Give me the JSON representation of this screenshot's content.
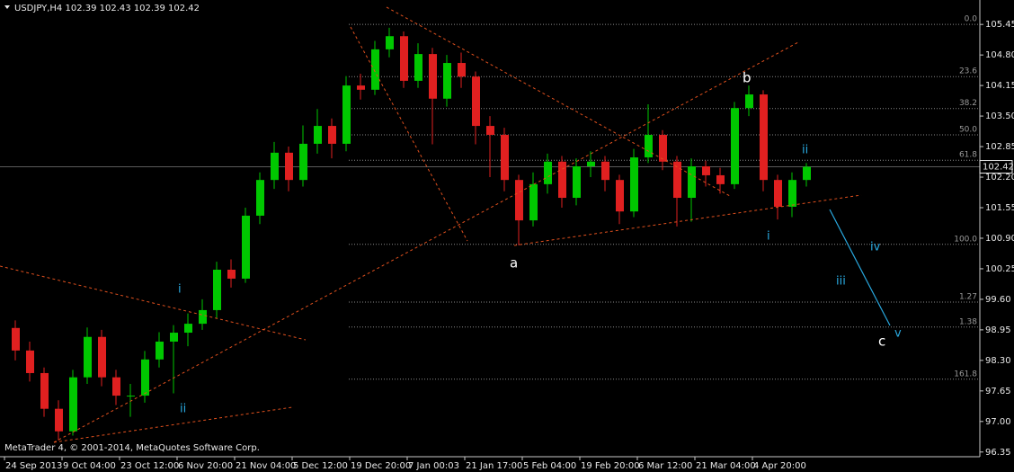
{
  "chart_data": {
    "type": "candlestick",
    "title": "USDJPY,H4  102.39 102.43 102.39 102.42",
    "footer": "MetaTrader 4, © 2001-2014, MetaQuotes Software Corp.",
    "categories": [
      "24 Sep 2013",
      null,
      null,
      null,
      "9 Oct 04:00",
      null,
      null,
      null,
      "23 Oct 12:00",
      null,
      null,
      null,
      "6 Nov 20:00",
      null,
      null,
      null,
      "21 Nov 04:00",
      null,
      null,
      null,
      "5 Dec 12:00",
      null,
      null,
      null,
      "19 Dec 20:00",
      null,
      null,
      null,
      "7 Jan 00:03",
      null,
      null,
      null,
      "21 Jan 17:00",
      null,
      null,
      null,
      "5 Feb 04:00",
      null,
      null,
      null,
      "19 Feb 20:00",
      null,
      null,
      null,
      "6 Mar 12:00",
      null,
      null,
      null,
      "21 Mar 04:00",
      null,
      null,
      null,
      "4 Apr 20:00",
      null,
      null,
      null
    ],
    "open": [
      98.99,
      98.51,
      98.03,
      97.27,
      96.79,
      97.94,
      98.8,
      97.94,
      97.55,
      97.55,
      98.32,
      98.7,
      98.89,
      99.08,
      99.37,
      100.23,
      100.04,
      101.38,
      102.14,
      102.72,
      102.14,
      102.91,
      103.29,
      102.91,
      104.15,
      104.06,
      104.92,
      105.2,
      104.25,
      104.82,
      103.87,
      104.63,
      104.34,
      103.29,
      103.1,
      102.14,
      101.28,
      102.05,
      102.53,
      101.76,
      102.43,
      102.53,
      102.14,
      101.47,
      102.62,
      103.1,
      102.53,
      101.76,
      102.43,
      102.24,
      102.05,
      103.67,
      103.96,
      102.14,
      101.57,
      102.14
    ],
    "high": [
      99.15,
      98.7,
      98.15,
      97.45,
      98.1,
      99.0,
      98.95,
      98.1,
      97.8,
      98.5,
      98.9,
      99.05,
      99.3,
      99.6,
      100.4,
      100.45,
      101.55,
      102.3,
      102.95,
      102.85,
      103.3,
      103.65,
      103.45,
      104.35,
      104.4,
      105.1,
      105.38,
      105.3,
      105.05,
      104.95,
      104.8,
      104.85,
      104.45,
      103.5,
      103.25,
      102.25,
      102.3,
      102.7,
      102.65,
      102.6,
      102.75,
      102.65,
      102.25,
      102.8,
      103.75,
      103.2,
      102.65,
      102.6,
      102.55,
      102.4,
      103.8,
      104.15,
      104.05,
      102.25,
      102.3,
      102.5
    ],
    "low": [
      98.3,
      97.85,
      97.1,
      96.6,
      96.7,
      97.8,
      97.75,
      97.35,
      97.1,
      97.4,
      98.15,
      97.6,
      98.6,
      98.95,
      99.2,
      99.85,
      99.95,
      101.2,
      101.95,
      101.9,
      102.0,
      102.7,
      102.6,
      102.75,
      103.85,
      103.95,
      104.75,
      104.1,
      104.1,
      102.9,
      103.7,
      104.1,
      102.9,
      102.2,
      101.9,
      100.75,
      101.15,
      101.85,
      101.55,
      101.6,
      102.2,
      101.9,
      101.2,
      101.35,
      102.5,
      102.35,
      101.15,
      101.25,
      102.0,
      101.85,
      101.95,
      103.5,
      101.9,
      101.3,
      101.35,
      102.0
    ],
    "close": [
      98.51,
      98.03,
      97.27,
      96.79,
      97.94,
      98.8,
      97.94,
      97.55,
      97.55,
      98.32,
      98.7,
      98.89,
      99.08,
      99.37,
      100.23,
      100.04,
      101.38,
      102.14,
      102.72,
      102.14,
      102.91,
      103.29,
      102.91,
      104.15,
      104.06,
      104.92,
      105.2,
      104.25,
      104.82,
      103.87,
      104.63,
      104.34,
      103.29,
      103.1,
      102.14,
      101.28,
      102.05,
      102.53,
      101.76,
      102.43,
      102.53,
      102.14,
      101.47,
      102.62,
      103.1,
      102.53,
      101.76,
      102.43,
      102.24,
      102.05,
      103.67,
      103.96,
      102.14,
      101.57,
      102.14,
      102.42
    ],
    "up_color": "#00c800",
    "down_color": "#e02020",
    "ylim": [
      96.25,
      105.97
    ],
    "yticks": [
      105.45,
      {
        "value": 104.8,
        "label": "104.80"
      },
      104.15,
      {
        "value": 103.5,
        "label": "103.50"
      },
      102.85,
      {
        "value": 102.2,
        "label": "102.20"
      },
      101.55,
      {
        "value": 100.9,
        "label": "100.90"
      },
      100.25,
      {
        "value": 99.6,
        "label": "99.60"
      },
      98.95,
      {
        "value": 98.3,
        "label": "98.30"
      },
      97.65,
      {
        "value": 97.0,
        "label": "97.00"
      },
      96.35
    ],
    "last_price": 102.42,
    "fib_levels": [
      {
        "value": 105.45,
        "label": "0.0"
      },
      {
        "value": 104.34,
        "label": "23.6"
      },
      {
        "value": 103.66,
        "label": "38.2"
      },
      {
        "value": 103.1,
        "label": "50.0"
      },
      {
        "value": 102.56,
        "label": "61.8"
      },
      {
        "value": 100.77,
        "label": "100.0"
      },
      {
        "value": 99.54,
        "label": "1.27"
      },
      {
        "value": 99.01,
        "label": "1.38"
      },
      {
        "value": 97.9,
        "label": "161.8"
      }
    ],
    "wave_labels": [
      "a",
      "b",
      "c",
      "i",
      "ii",
      "i",
      "ii",
      "iii",
      "iv",
      "v"
    ]
  }
}
